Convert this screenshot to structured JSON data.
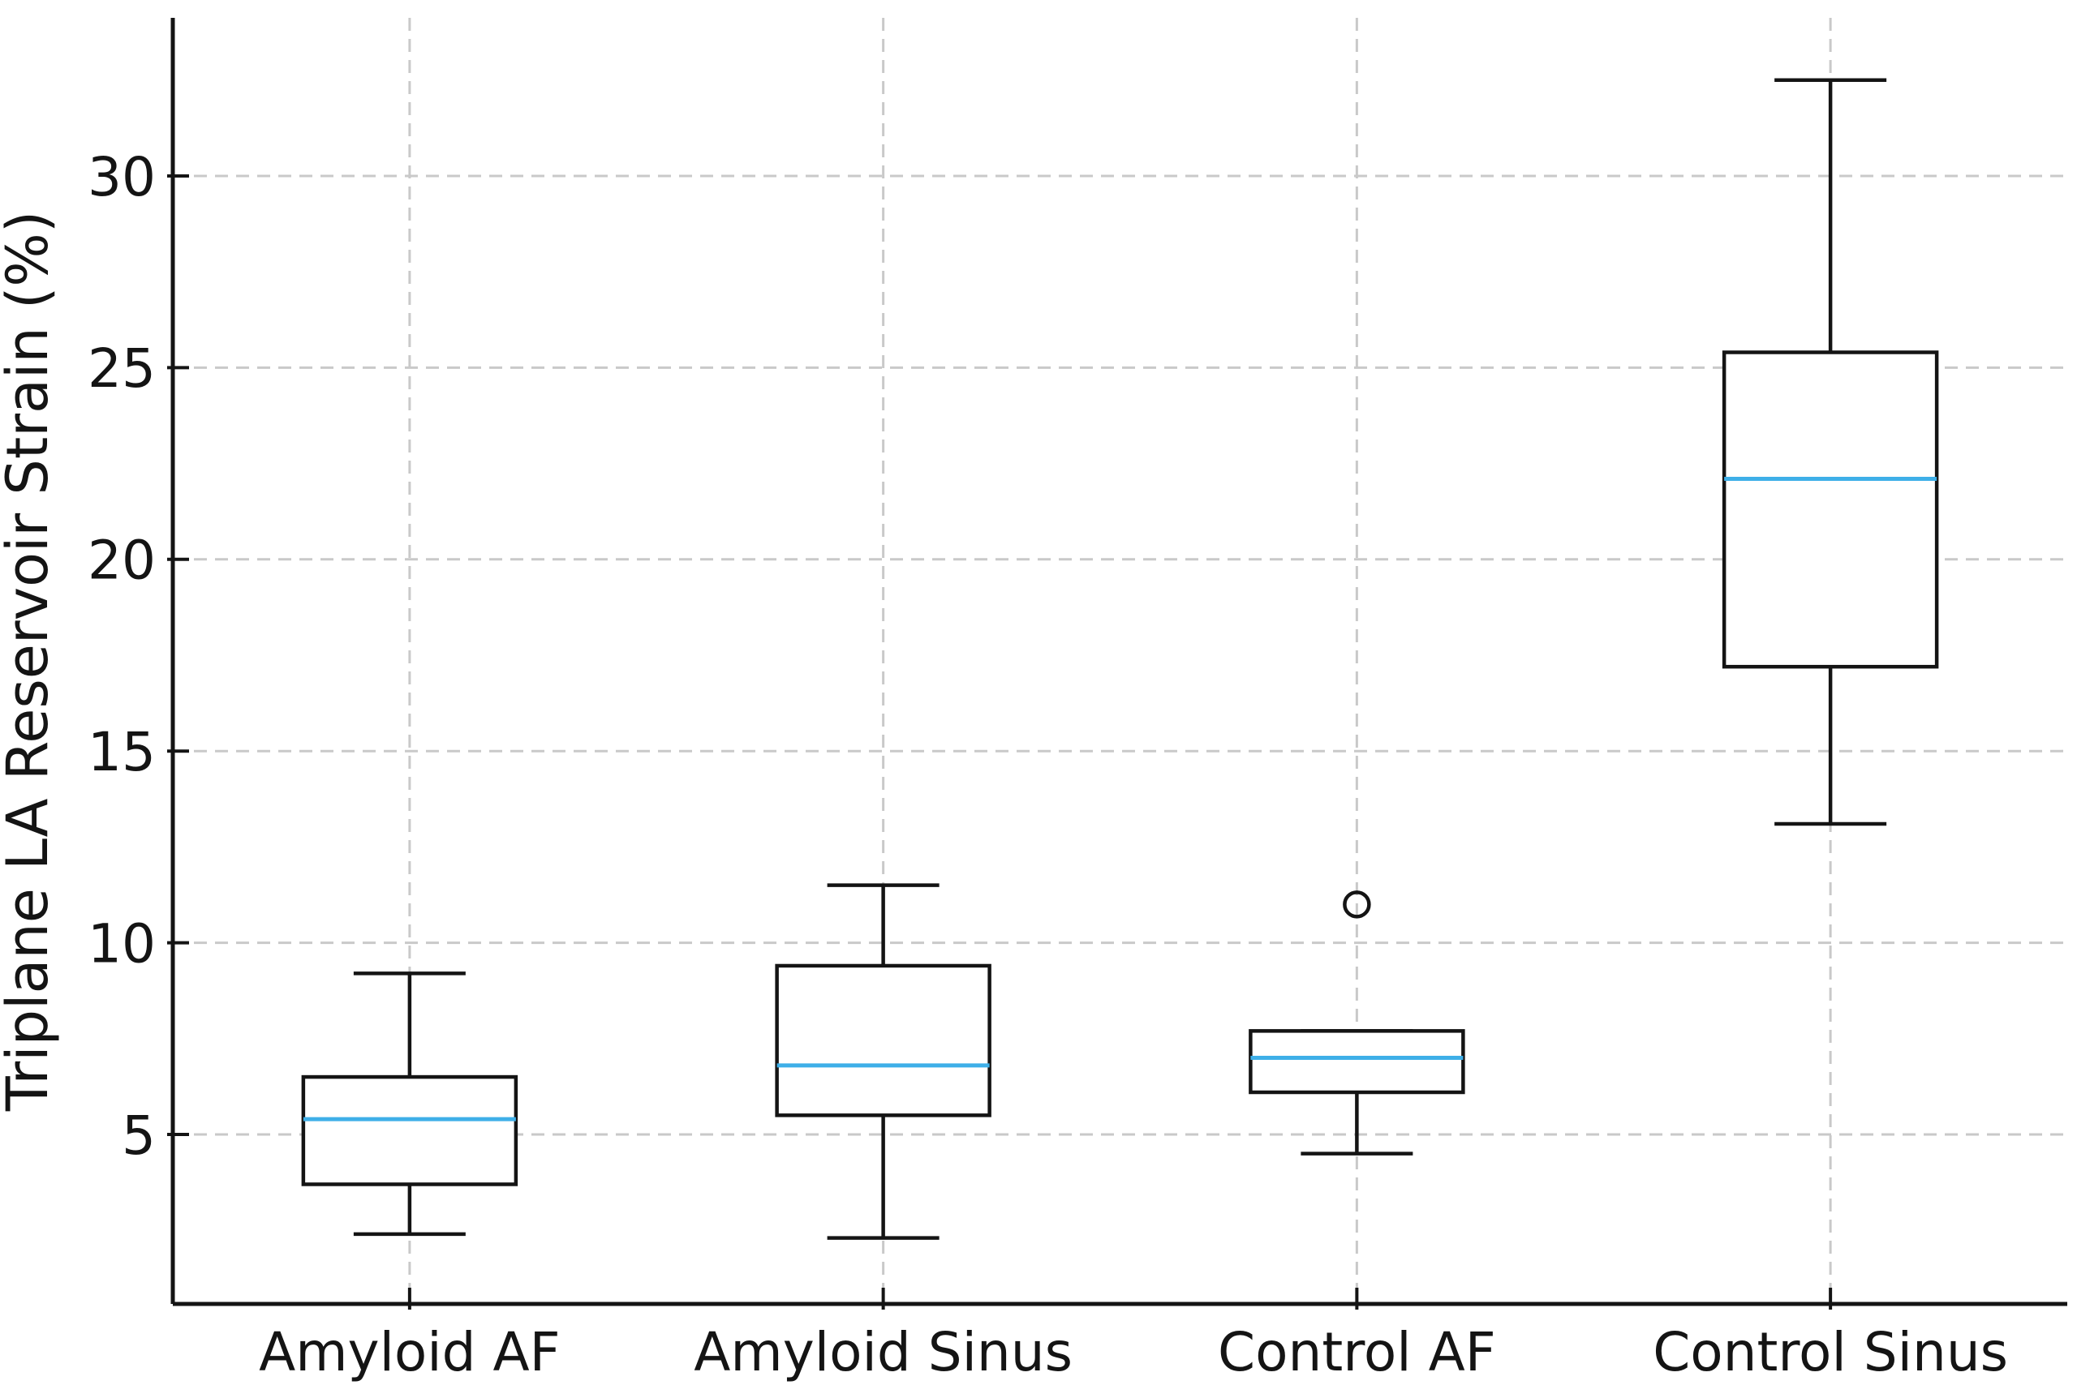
{
  "chart_data": {
    "type": "box",
    "title": "",
    "xlabel": "",
    "ylabel": "Triplane LA Reservoir Strain (%)",
    "categories": [
      "Amyloid AF",
      "Amyloid Sinus",
      "Control AF",
      "Control Sinus"
    ],
    "yticks": [
      5,
      10,
      15,
      20,
      25,
      30
    ],
    "ylim": [
      0.6,
      34.1
    ],
    "grid": "dashed gray horizontal lines at y ticks and vertical lines at category centers",
    "legend_position": "none",
    "series": [
      {
        "name": "Amyloid AF",
        "whisker_low": 2.4,
        "q1": 3.7,
        "median": 5.4,
        "q3": 6.5,
        "whisker_high": 9.2,
        "outliers": []
      },
      {
        "name": "Amyloid Sinus",
        "whisker_low": 2.3,
        "q1": 5.5,
        "median": 6.8,
        "q3": 9.4,
        "whisker_high": 11.5,
        "outliers": []
      },
      {
        "name": "Control AF",
        "whisker_low": 4.5,
        "q1": 6.1,
        "median": 7.0,
        "q3": 7.7,
        "whisker_high": 7.7,
        "outliers": [
          11.0
        ]
      },
      {
        "name": "Control Sinus",
        "whisker_low": 13.1,
        "q1": 17.2,
        "median": 22.1,
        "q3": 25.4,
        "whisker_high": 32.5,
        "outliers": []
      }
    ],
    "colors": {
      "box_line": "#141414",
      "median": "#3eafe8",
      "grid": "#c9c9c9",
      "background": "#ffffff",
      "text": "#141414"
    }
  }
}
